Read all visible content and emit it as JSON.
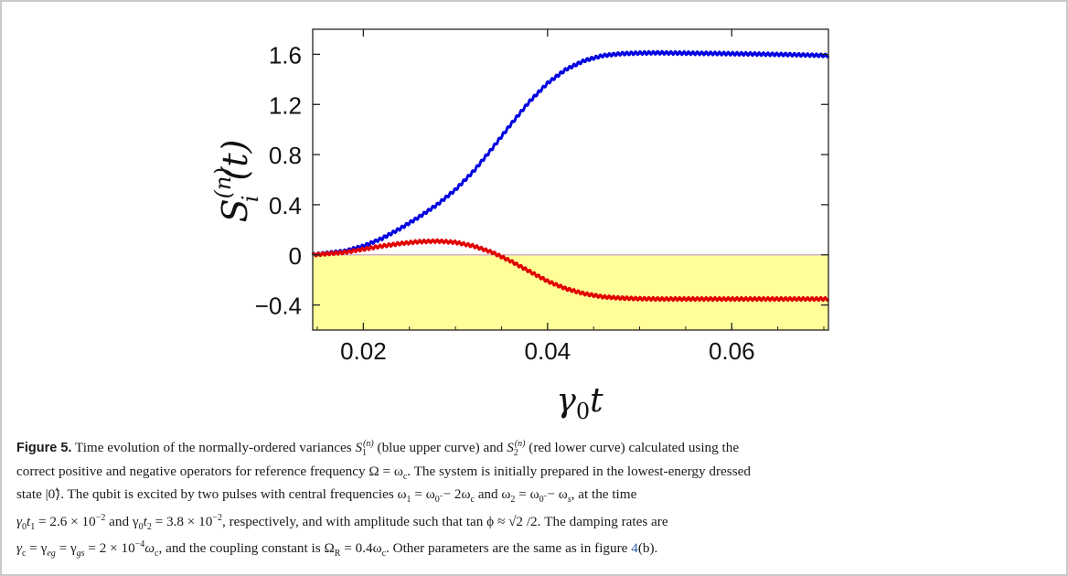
{
  "chart_data": {
    "type": "line",
    "xlabel": "γ0t",
    "ylabel": "S_i^(n)(t)",
    "xlim": [
      0.0145,
      0.0705
    ],
    "ylim": [
      -0.6,
      1.8
    ],
    "x_ticks": [
      0.02,
      0.04,
      0.06
    ],
    "x_tick_labels": [
      "0.02",
      "0.04",
      "0.06"
    ],
    "y_ticks": [
      -0.4,
      0,
      0.4,
      0.8,
      1.2,
      1.6
    ],
    "y_tick_labels": [
      "−0.4",
      "0",
      "0.4",
      "0.8",
      "1.2",
      "1.6"
    ],
    "shaded_region": {
      "y_from": -0.6,
      "y_to": 0,
      "color": "#ffff99"
    },
    "zero_line_color": "#c8a0c8",
    "grid": false,
    "series": [
      {
        "color": "#0000e0",
        "x": [
          0.0145,
          0.018,
          0.02,
          0.022,
          0.024,
          0.026,
          0.028,
          0.03,
          0.032,
          0.034,
          0.036,
          0.038,
          0.04,
          0.042,
          0.044,
          0.046,
          0.048,
          0.05,
          0.052,
          0.054,
          0.058,
          0.062,
          0.066,
          0.0705
        ],
        "y": [
          0.0,
          0.03,
          0.07,
          0.13,
          0.21,
          0.3,
          0.4,
          0.52,
          0.67,
          0.85,
          1.04,
          1.22,
          1.37,
          1.48,
          1.55,
          1.59,
          1.605,
          1.61,
          1.612,
          1.61,
          1.607,
          1.603,
          1.598,
          1.59
        ],
        "ripple": 0.012
      },
      {
        "color": "#e00000",
        "x": [
          0.0145,
          0.018,
          0.02,
          0.022,
          0.024,
          0.026,
          0.028,
          0.03,
          0.032,
          0.034,
          0.036,
          0.038,
          0.04,
          0.042,
          0.044,
          0.046,
          0.048,
          0.05,
          0.052,
          0.054,
          0.058,
          0.062,
          0.066,
          0.0705
        ],
        "y": [
          0.0,
          0.02,
          0.045,
          0.07,
          0.09,
          0.105,
          0.11,
          0.1,
          0.07,
          0.02,
          -0.05,
          -0.13,
          -0.21,
          -0.27,
          -0.31,
          -0.335,
          -0.345,
          -0.35,
          -0.352,
          -0.352,
          -0.352,
          -0.352,
          -0.352,
          -0.352
        ],
        "ripple": 0.012
      }
    ]
  },
  "caption": {
    "label": "Figure 5.",
    "line1": "Time evolution of the normally-ordered variances",
    "s1": "S",
    "s1_sub": "1",
    "s1_sup": "(n)",
    "blue_desc": "(blue upper curve) and",
    "s2": "S",
    "s2_sub": "2",
    "s2_sup": "(n)",
    "red_desc": "(red lower curve) calculated using the",
    "line2": "correct positive and negative operators for reference frequency Ω = ω",
    "line2_sub": "c",
    "line2_end": ". The system is initially prepared in the lowest-energy dressed",
    "line3": "state |0̃⟩. The qubit is excited by two pulses with central frequencies ω",
    "line3_a": "1",
    "line3_b": " = ω",
    "line3_c": "0̃",
    "line3_d": " − 2ω",
    "line3_e": "c",
    "line3_f": " and ω",
    "line3_g": "2",
    "line3_h": " = ω",
    "line3_i": "0̃",
    "line3_j": " − ω",
    "line3_k": "s",
    "line3_l": ", at the time",
    "line4_a": "γ",
    "line4_b": "0",
    "line4_c": "t",
    "line4_d": "1",
    "line4_e": " = 2.6 × 10",
    "line4_f": "−2",
    "line4_g": " and γ",
    "line4_h": "0",
    "line4_i": "t",
    "line4_j": "2",
    "line4_k": " = 3.8 × 10",
    "line4_l": "−2",
    "line4_m": ", respectively, and with amplitude such that tan ϕ ≈ √2 /2. The damping rates are",
    "line5_a": "γ",
    "line5_b": "c",
    "line5_c": " = γ",
    "line5_d": "eg",
    "line5_e": " = γ",
    "line5_f": "gs",
    "line5_g": " = 2 × 10",
    "line5_h": "−4",
    "line5_i": "ω",
    "line5_j": "c",
    "line5_k": ", and the coupling constant is Ω",
    "line5_l": "R",
    "line5_m": " = 0.4ω",
    "line5_n": "c",
    "line5_o": ". Other parameters are the same as in figure ",
    "ref": "4",
    "ref_end": "(b)."
  }
}
